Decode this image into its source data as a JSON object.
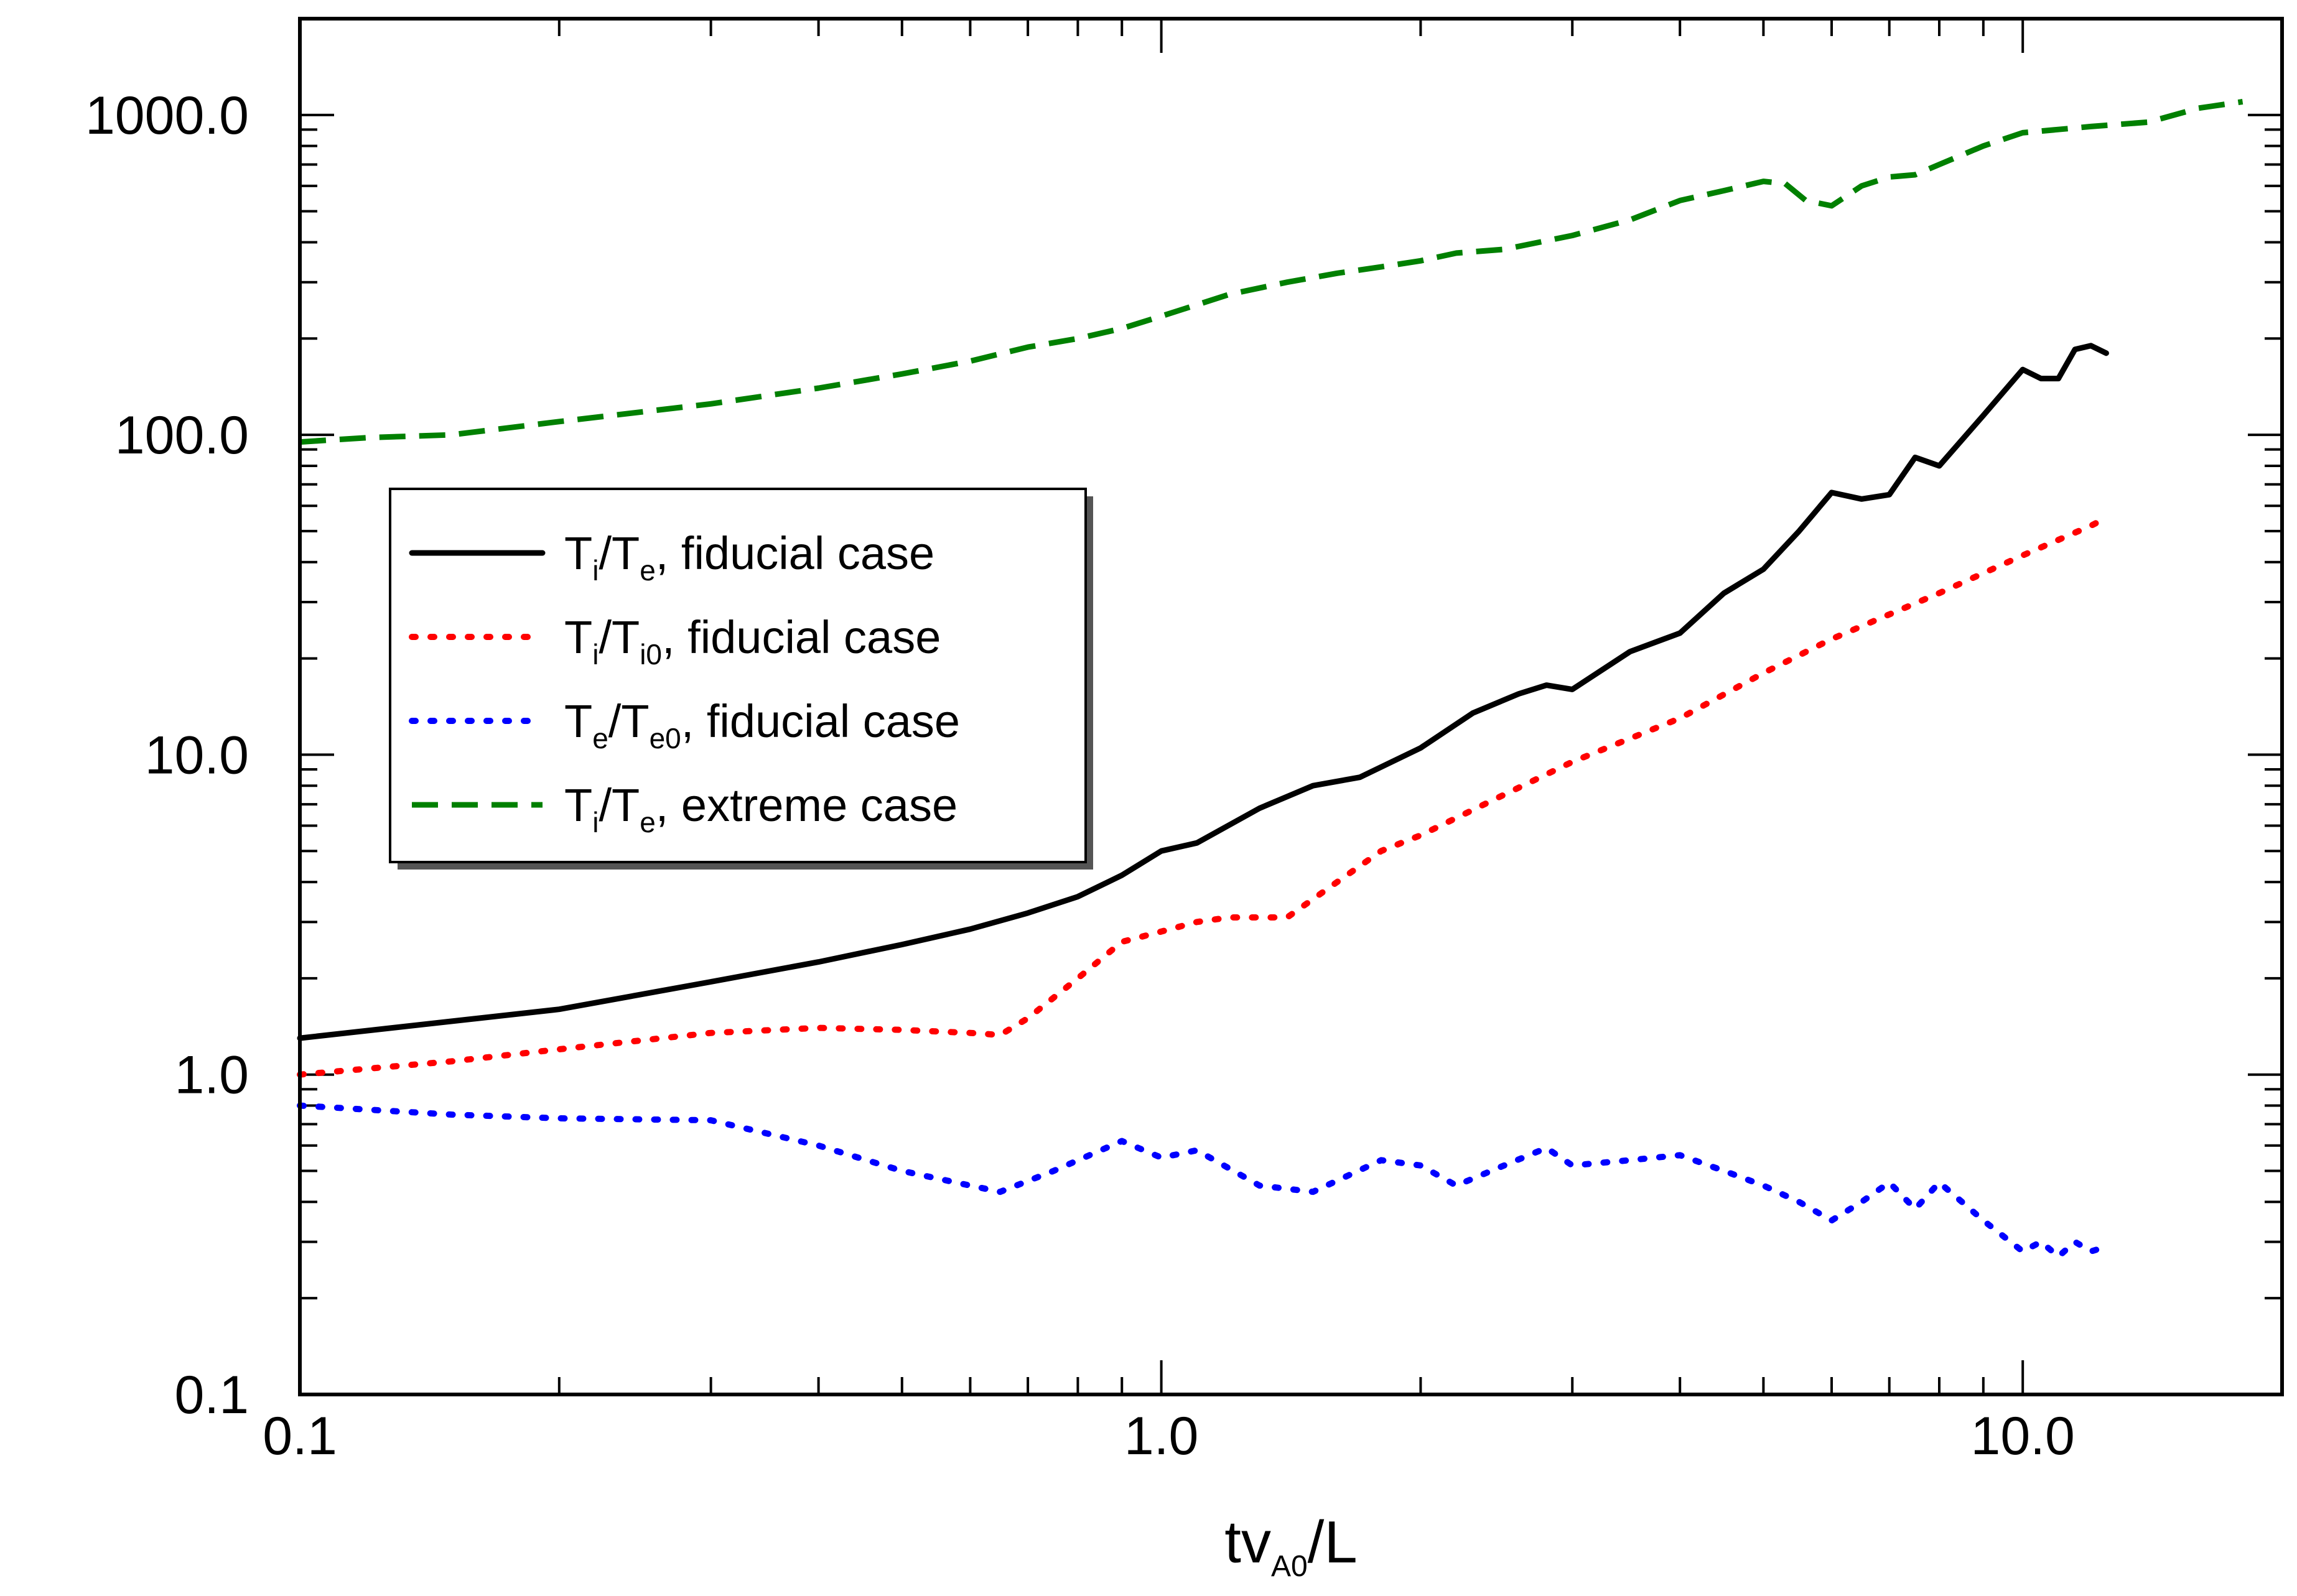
{
  "chart_data": {
    "type": "line",
    "title": "",
    "xlabel": {
      "main": "tv",
      "sub": "A0",
      "tail": "/L"
    },
    "ylabel": "",
    "xscale": "log",
    "yscale": "log",
    "xlim": [
      0.1,
      20
    ],
    "ylim": [
      0.1,
      2000
    ],
    "x_ticks": [
      {
        "value": 0.1,
        "label": "0.1"
      },
      {
        "value": 1.0,
        "label": "1.0"
      },
      {
        "value": 10.0,
        "label": "10.0"
      }
    ],
    "y_ticks": [
      {
        "value": 0.1,
        "label": "0.1"
      },
      {
        "value": 1.0,
        "label": "1.0"
      },
      {
        "value": 10.0,
        "label": "10.0"
      },
      {
        "value": 100.0,
        "label": "100.0"
      },
      {
        "value": 1000.0,
        "label": "1000.0"
      }
    ],
    "legend_position": "center-left",
    "series": [
      {
        "name": "Ti/Te, fiducial case",
        "legend": [
          {
            "t": "T"
          },
          {
            "s": "i"
          },
          {
            "t": "/T"
          },
          {
            "s": "e"
          },
          {
            "t": ", fiducial case"
          }
        ],
        "color": "#000000",
        "style": "solid",
        "x": [
          0.1,
          0.2,
          0.3,
          0.4,
          0.5,
          0.6,
          0.7,
          0.8,
          0.9,
          1.0,
          1.1,
          1.3,
          1.5,
          1.7,
          2.0,
          2.3,
          2.6,
          2.8,
          3.0,
          3.5,
          4.0,
          4.5,
          5.0,
          5.5,
          6.0,
          6.5,
          7.0,
          7.5,
          8.0,
          9.0,
          10.0,
          10.5,
          11.0,
          11.5,
          12.0,
          12.5
        ],
        "values": [
          1.3,
          1.6,
          1.95,
          2.25,
          2.55,
          2.85,
          3.2,
          3.6,
          4.2,
          5.0,
          5.3,
          6.8,
          8.0,
          8.5,
          10.5,
          13.5,
          15.5,
          16.5,
          16.0,
          21.0,
          24.0,
          32.0,
          38.0,
          50.0,
          66.0,
          63.0,
          65.0,
          85.0,
          80.0,
          115.0,
          160.0,
          150.0,
          150.0,
          185.0,
          190.0,
          180.0
        ]
      },
      {
        "name": "Ti/Ti0, fiducial case",
        "legend": [
          {
            "t": "T"
          },
          {
            "s": "i"
          },
          {
            "t": "/T"
          },
          {
            "s": "i0"
          },
          {
            "t": ", fiducial case"
          }
        ],
        "color": "#ff0000",
        "style": "dotted",
        "x": [
          0.1,
          0.15,
          0.2,
          0.3,
          0.4,
          0.5,
          0.6,
          0.65,
          0.7,
          0.8,
          0.9,
          1.0,
          1.1,
          1.2,
          1.4,
          1.6,
          1.8,
          2.0,
          2.5,
          3.0,
          4.0,
          5.0,
          6.0,
          8.0,
          10.0,
          12.0,
          12.5
        ],
        "values": [
          1.0,
          1.1,
          1.2,
          1.35,
          1.4,
          1.38,
          1.35,
          1.33,
          1.5,
          2.0,
          2.6,
          2.8,
          3.0,
          3.1,
          3.1,
          4.0,
          5.0,
          5.6,
          7.5,
          9.5,
          13.0,
          18.0,
          23.0,
          32.0,
          42.0,
          52.0,
          55.0
        ]
      },
      {
        "name": "Te/Te0, fiducial case",
        "legend": [
          {
            "t": "T"
          },
          {
            "s": "e"
          },
          {
            "t": "/T"
          },
          {
            "s": "e0"
          },
          {
            "t": ", fiducial case"
          }
        ],
        "color": "#0000ff",
        "style": "dotted",
        "x": [
          0.1,
          0.15,
          0.2,
          0.3,
          0.4,
          0.5,
          0.6,
          0.65,
          0.75,
          0.9,
          1.0,
          1.1,
          1.3,
          1.5,
          1.8,
          2.0,
          2.2,
          2.5,
          2.8,
          3.0,
          3.5,
          4.0,
          4.5,
          5.0,
          5.5,
          6.0,
          6.5,
          7.0,
          7.5,
          8.0,
          8.5,
          9.0,
          10.0,
          10.5,
          11.0,
          11.5,
          12.0,
          12.5
        ],
        "values": [
          0.8,
          0.75,
          0.73,
          0.72,
          0.6,
          0.5,
          0.45,
          0.43,
          0.5,
          0.62,
          0.55,
          0.58,
          0.45,
          0.43,
          0.54,
          0.52,
          0.45,
          0.52,
          0.59,
          0.52,
          0.54,
          0.56,
          0.5,
          0.45,
          0.4,
          0.35,
          0.4,
          0.46,
          0.38,
          0.46,
          0.4,
          0.35,
          0.28,
          0.3,
          0.27,
          0.3,
          0.28,
          0.29
        ]
      },
      {
        "name": "Ti/Te, extreme case",
        "legend": [
          {
            "t": "T"
          },
          {
            "s": "i"
          },
          {
            "t": "/T"
          },
          {
            "s": "e"
          },
          {
            "t": ", extreme case"
          }
        ],
        "color": "#008000",
        "style": "dashed",
        "x": [
          0.1,
          0.12,
          0.15,
          0.2,
          0.3,
          0.4,
          0.5,
          0.6,
          0.7,
          0.8,
          0.9,
          1.0,
          1.2,
          1.4,
          1.6,
          1.8,
          2.0,
          2.2,
          2.5,
          3.0,
          3.5,
          4.0,
          4.5,
          5.0,
          5.3,
          5.6,
          6.0,
          6.5,
          7.0,
          7.5,
          8.0,
          9.0,
          10.0,
          12.0,
          14.0,
          16.0,
          18.0
        ],
        "values": [
          95,
          98,
          100,
          110,
          125,
          140,
          155,
          170,
          188,
          200,
          215,
          235,
          275,
          300,
          320,
          335,
          350,
          370,
          380,
          420,
          470,
          540,
          580,
          620,
          610,
          540,
          520,
          600,
          640,
          650,
          700,
          800,
          880,
          920,
          950,
          1050,
          1100
        ]
      }
    ]
  }
}
